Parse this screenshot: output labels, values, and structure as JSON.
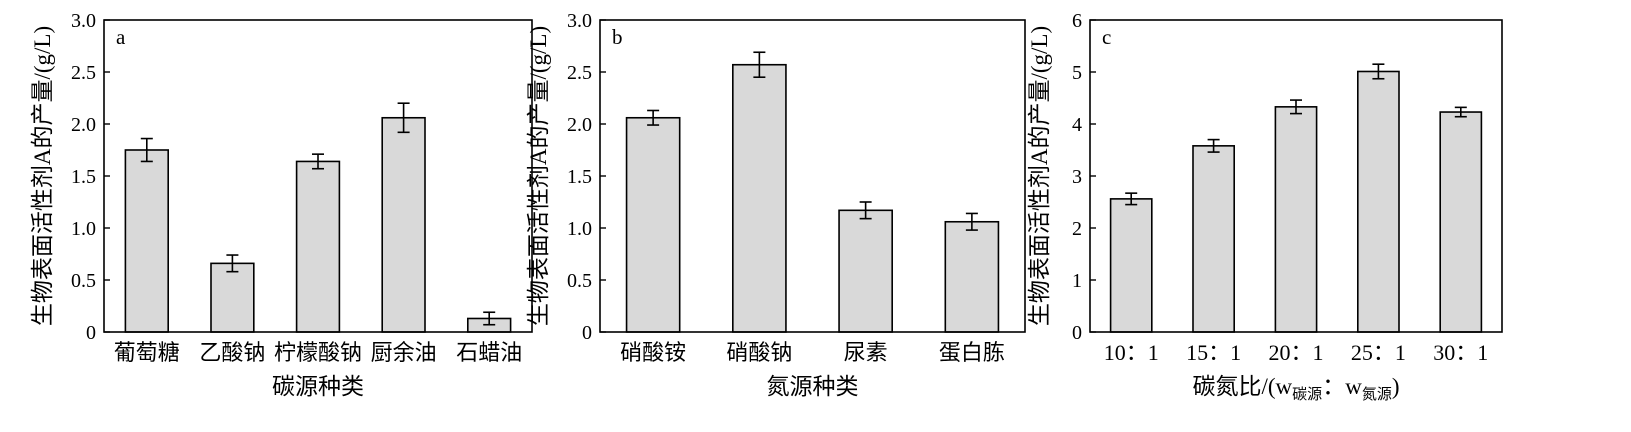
{
  "chart_data": [
    {
      "type": "bar",
      "panel_label": "a",
      "categories": [
        "葡萄糖",
        "乙酸钠",
        "柠檬酸钠",
        "厨余油",
        "石蜡油"
      ],
      "values": [
        1.75,
        0.66,
        1.64,
        2.06,
        0.13
      ],
      "errors": [
        0.11,
        0.08,
        0.07,
        0.14,
        0.06
      ],
      "xlabel": "碳源种类",
      "ylabel": "生物表面活性剂A的产量/(g/L)",
      "ylim": [
        0,
        3.0
      ],
      "yticks": [
        0,
        0.5,
        1.0,
        1.5,
        2.0,
        2.5,
        3.0
      ],
      "ytick_labels": [
        "0",
        "0.5",
        "1.0",
        "1.5",
        "2.0",
        "2.5",
        "3.0"
      ],
      "bar_color": "#d9d9d9",
      "grid": false,
      "legend": "none"
    },
    {
      "type": "bar",
      "panel_label": "b",
      "categories": [
        "硝酸铵",
        "硝酸钠",
        "尿素",
        "蛋白胨"
      ],
      "values": [
        2.06,
        2.57,
        1.17,
        1.06
      ],
      "errors": [
        0.07,
        0.12,
        0.08,
        0.08
      ],
      "xlabel": "氮源种类",
      "ylabel": "生物表面活性剂A的产量/(g/L)",
      "ylim": [
        0,
        3.0
      ],
      "yticks": [
        0,
        0.5,
        1.0,
        1.5,
        2.0,
        2.5,
        3.0
      ],
      "ytick_labels": [
        "0",
        "0.5",
        "1.0",
        "1.5",
        "2.0",
        "2.5",
        "3.0"
      ],
      "bar_color": "#d9d9d9",
      "grid": false,
      "legend": "none"
    },
    {
      "type": "bar",
      "panel_label": "c",
      "categories": [
        "10：1",
        "15：1",
        "20：1",
        "25：1",
        "30：1"
      ],
      "values": [
        2.56,
        3.58,
        4.33,
        5.01,
        4.23
      ],
      "errors": [
        0.11,
        0.12,
        0.13,
        0.14,
        0.09
      ],
      "xlabel": "碳氮比/(w",
      "xlabel_sub1": "碳源",
      "xlabel_mid": "：w",
      "xlabel_sub2": "氮源",
      "xlabel_end": ")",
      "ylabel": "生物表面活性剂A的产量/(g/L)",
      "ylim": [
        0,
        6
      ],
      "yticks": [
        0,
        1,
        2,
        3,
        4,
        5,
        6
      ],
      "ytick_labels": [
        "0",
        "1",
        "2",
        "3",
        "4",
        "5",
        "6"
      ],
      "bar_color": "#d9d9d9",
      "grid": false,
      "legend": "none"
    }
  ]
}
